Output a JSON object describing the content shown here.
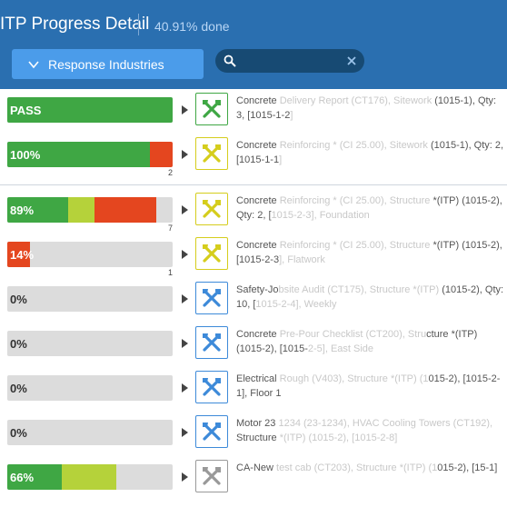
{
  "header": {
    "title": "ITP Progress Detail",
    "percent_done": "40.91% done",
    "dropdown_label": "Response Industries",
    "search_placeholder": "",
    "search_value": ""
  },
  "colors": {
    "header_bg": "#2a6fb0",
    "green": "#3fa744",
    "light_green": "#b5d23a",
    "red": "#e4461f",
    "empty": "#dcdcdc",
    "icon_green": "#3fa744",
    "icon_yellow": "#d5cd1c",
    "icon_blue": "#3d8ad9",
    "icon_gray": "#999999"
  },
  "rows": [
    {
      "label": "PASS",
      "segments": [
        {
          "fill": 1.0,
          "color": "green"
        }
      ],
      "count": "",
      "icon": "tools-icon",
      "icon_color": "icon_green",
      "text_a": "Concrete",
      "text_b": " Delivery Report (CT176), Sitework",
      "text_c": " (1015-1), Qty: 3, [1015-1-2",
      "text_d": "]"
    },
    {
      "label": "100%",
      "segments": [
        {
          "fill": 0.86,
          "color": "green"
        },
        {
          "fill": 0.14,
          "color": "red"
        }
      ],
      "count": "2",
      "icon": "tools-icon",
      "icon_color": "icon_yellow",
      "text_a": "Concrete",
      "text_b": " Reinforcing * (CI 25.00), Sitework",
      "text_c": " (1015-1), Qty: 2, [1015-1-1",
      "text_d": "]"
    },
    {
      "label": "89%",
      "segments": [
        {
          "fill": 0.37,
          "color": "green"
        },
        {
          "fill": 0.16,
          "color": "light_green"
        },
        {
          "fill": 0.37,
          "color": "red"
        }
      ],
      "count": "7",
      "icon": "tools-icon",
      "icon_color": "icon_yellow",
      "text_a": "Concrete",
      "text_b": " Reinforcing * (CI 25.00), Structure",
      "text_c": " *(ITP) (1015-2), Qty: 2, [",
      "text_d": "1015-2-3], Foundation"
    },
    {
      "label": "14%",
      "segments": [
        {
          "fill": 0.14,
          "color": "red"
        }
      ],
      "count": "1",
      "icon": "tools-icon",
      "icon_color": "icon_yellow",
      "text_a": "Concrete",
      "text_b": " Reinforcing * (CI 25.00), Structure",
      "text_c": " *(ITP) (1015-2), [1015-2-3",
      "text_d": "], Flatwork"
    },
    {
      "label": "0%",
      "segments": [],
      "count": "",
      "icon": "tools-icon",
      "icon_color": "icon_blue",
      "text_a": "Safety-Jo",
      "text_b": "bsite Audit (CT175), Structure *(ITP)",
      "text_c": " (1015-2), Qty: 10, [",
      "text_d": "1015-2-4], Weekly"
    },
    {
      "label": "0%",
      "segments": [],
      "count": "",
      "icon": "tools-icon",
      "icon_color": "icon_blue",
      "text_a": "Concrete",
      "text_b": " Pre-Pour Checklist (CT200), Stru",
      "text_c": "cture *(ITP) (1015-2), [1015-",
      "text_d": "2-5], East Side"
    },
    {
      "label": "0%",
      "segments": [],
      "count": "",
      "icon": "tools-icon",
      "icon_color": "icon_blue",
      "text_a": "Electrical",
      "text_b": " Rough (V403), Structure *(ITP) (1",
      "text_c": "015-2), [1015-2-1], Floor 1",
      "text_d": ""
    },
    {
      "label": "0%",
      "segments": [],
      "count": "",
      "icon": "tools-icon",
      "icon_color": "icon_blue",
      "text_a": "Motor 23",
      "text_b": " 1234 (23-1234), HVAC Cooling Towers (CT192),",
      "text_c": " Structure",
      "text_d": " *(ITP) (1015-2), [1015-2-8]"
    },
    {
      "label": "66%",
      "segments": [
        {
          "fill": 0.33,
          "color": "green"
        },
        {
          "fill": 0.33,
          "color": "light_green"
        }
      ],
      "count": "",
      "icon": "tools-icon",
      "icon_color": "icon_gray",
      "text_a": "CA-New",
      "text_b": " test cab (CT203), Structure *(ITP) (1",
      "text_c": "015-2), [15-1]",
      "text_d": ""
    }
  ]
}
